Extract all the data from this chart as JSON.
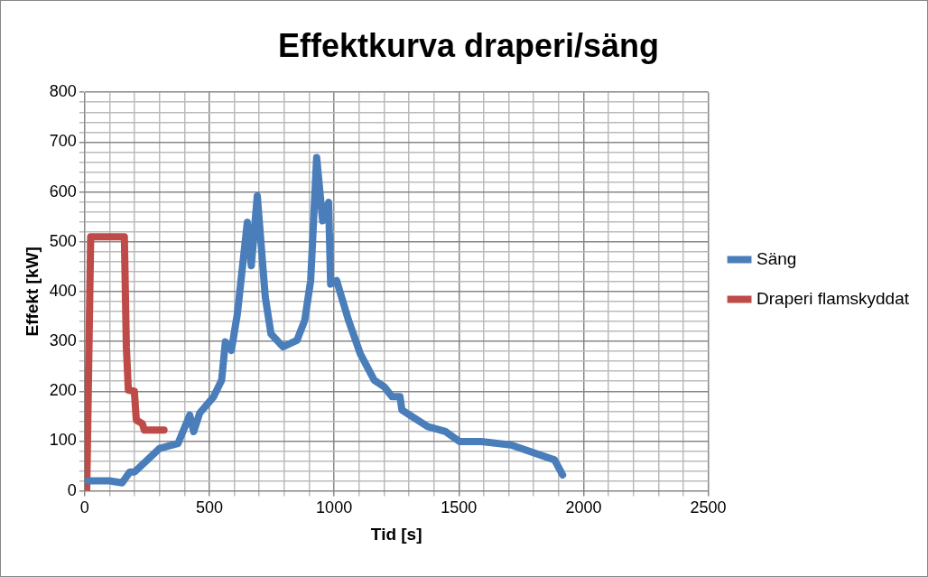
{
  "chart_data": {
    "type": "line",
    "title": "Effektkurva draperi/säng",
    "xlabel": "Tid [s]",
    "ylabel": "Effekt [kW]",
    "xlim": [
      0,
      2500
    ],
    "ylim": [
      0,
      800
    ],
    "xticks": [
      0,
      {
        "value": 100,
        "label": null
      },
      {
        "value": 200,
        "label": null
      },
      {
        "value": 300,
        "label": null
      },
      {
        "value": 400,
        "label": null
      },
      500,
      {
        "value": 600,
        "label": null
      },
      {
        "value": 700,
        "label": null
      },
      {
        "value": 800,
        "label": null
      },
      {
        "value": 900,
        "label": null
      },
      1000,
      {
        "value": 1100,
        "label": null
      },
      {
        "value": 1200,
        "label": null
      },
      {
        "value": 1300,
        "label": null
      },
      {
        "value": 1400,
        "label": null
      },
      1500,
      {
        "value": 1600,
        "label": null
      },
      {
        "value": 1700,
        "label": null
      },
      {
        "value": 1800,
        "label": null
      },
      {
        "value": 1900,
        "label": null
      },
      2000,
      {
        "value": 2100,
        "label": null
      },
      {
        "value": 2200,
        "label": null
      },
      {
        "value": 2300,
        "label": null
      },
      {
        "value": 2400,
        "label": null
      },
      2500
    ],
    "yticks": [
      0,
      {
        "value": 20,
        "label": null
      },
      {
        "value": 40,
        "label": null
      },
      {
        "value": 60,
        "label": null
      },
      {
        "value": 80,
        "label": null
      },
      100,
      {
        "value": 120,
        "label": null
      },
      {
        "value": 140,
        "label": null
      },
      {
        "value": 160,
        "label": null
      },
      {
        "value": 180,
        "label": null
      },
      200,
      {
        "value": 220,
        "label": null
      },
      {
        "value": 240,
        "label": null
      },
      {
        "value": 260,
        "label": null
      },
      {
        "value": 280,
        "label": null
      },
      300,
      {
        "value": 320,
        "label": null
      },
      {
        "value": 340,
        "label": null
      },
      {
        "value": 360,
        "label": null
      },
      {
        "value": 380,
        "label": null
      },
      400,
      {
        "value": 420,
        "label": null
      },
      {
        "value": 440,
        "label": null
      },
      {
        "value": 460,
        "label": null
      },
      {
        "value": 480,
        "label": null
      },
      500,
      {
        "value": 520,
        "label": null
      },
      {
        "value": 540,
        "label": null
      },
      {
        "value": 560,
        "label": null
      },
      {
        "value": 580,
        "label": null
      },
      600,
      {
        "value": 620,
        "label": null
      },
      {
        "value": 640,
        "label": null
      },
      {
        "value": 660,
        "label": null
      },
      {
        "value": 680,
        "label": null
      },
      700,
      {
        "value": 720,
        "label": null
      },
      {
        "value": 740,
        "label": null
      },
      {
        "value": 760,
        "label": null
      },
      {
        "value": 780,
        "label": null
      },
      800
    ],
    "grid": true,
    "legend": "right",
    "marker": "none",
    "line_style": "solid",
    "series": [
      {
        "name": "Säng",
        "color": "#4a7ebb",
        "x": [
          15,
          100,
          150,
          181,
          200,
          300,
          374,
          421,
          437,
          461,
          517,
          549,
          564,
          588,
          612,
          652,
          668,
          692,
          724,
          747,
          795,
          851,
          882,
          906,
          930,
          954,
          978,
          986,
          1010,
          1058,
          1105,
          1161,
          1201,
          1232,
          1264,
          1272,
          1375,
          1447,
          1503,
          1590,
          1709,
          1884,
          1916
        ],
        "values": [
          20,
          20,
          16,
          38,
          38,
          85,
          95,
          152,
          119,
          156,
          189,
          222,
          299,
          282,
          355,
          539,
          452,
          592,
          389,
          315,
          289,
          302,
          342,
          422,
          669,
          542,
          579,
          415,
          422,
          342,
          275,
          222,
          209,
          189,
          189,
          162,
          129,
          119,
          99,
          99,
          92,
          62,
          32
        ]
      },
      {
        "name": "Draperi flamskyddat",
        "color": "#be4b48",
        "x": [
          8,
          24,
          159,
          167,
          175,
          199,
          207,
          231,
          239,
          318
        ],
        "values": [
          0,
          510,
          510,
          289,
          202,
          200,
          142,
          135,
          122,
          122
        ]
      }
    ]
  }
}
